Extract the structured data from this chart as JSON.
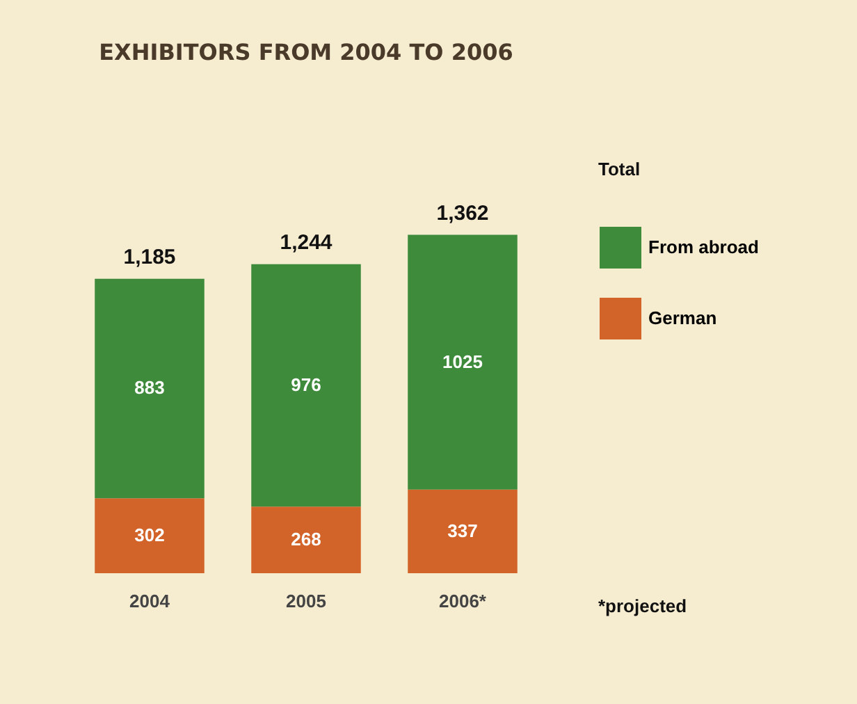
{
  "chart_data": {
    "type": "bar",
    "title": "EXHIBITORS FROM 2004 TO 2006",
    "categories": [
      "2004",
      "2005",
      "2006*"
    ],
    "stacked": true,
    "data_labels": true,
    "legend": "right",
    "series": [
      {
        "name": "German",
        "color": "#d2642a",
        "values": [
          302,
          268,
          337
        ]
      },
      {
        "name": "From abroad",
        "color": "#3f8b3c",
        "values": [
          883,
          976,
          1025
        ]
      }
    ],
    "totals": [
      "1,185",
      "1,244",
      "1,362"
    ],
    "annotations": [
      "Total",
      "*projected"
    ]
  }
}
